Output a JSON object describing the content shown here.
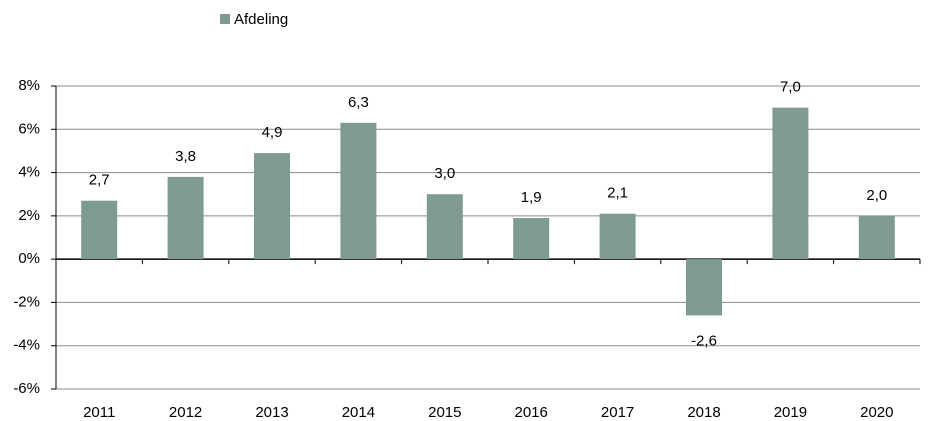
{
  "chart_data": {
    "type": "bar",
    "categories": [
      "2011",
      "2012",
      "2013",
      "2014",
      "2015",
      "2016",
      "2017",
      "2018",
      "2019",
      "2020"
    ],
    "series": [
      {
        "name": "Afdeling",
        "color": "#7f9a93",
        "values": [
          2.7,
          3.8,
          4.9,
          6.3,
          3.0,
          1.9,
          2.1,
          -2.6,
          7.0,
          2.0
        ],
        "value_labels": [
          "2,7",
          "3,8",
          "4,9",
          "6,3",
          "3,0",
          "1,9",
          "2,1",
          "-2,6",
          "7,0",
          "2,0"
        ]
      }
    ],
    "ylim": [
      -6,
      8
    ],
    "yticks": [
      {
        "value": -6,
        "label": "-6%"
      },
      {
        "value": -4,
        "label": "-4%"
      },
      {
        "value": -2,
        "label": "-2%"
      },
      {
        "value": 0,
        "label": "0%"
      },
      {
        "value": 2,
        "label": "2%"
      },
      {
        "value": 4,
        "label": "4%"
      },
      {
        "value": 6,
        "label": "6%"
      },
      {
        "value": 8,
        "label": "8%"
      }
    ],
    "grid": true,
    "legend": "top"
  }
}
